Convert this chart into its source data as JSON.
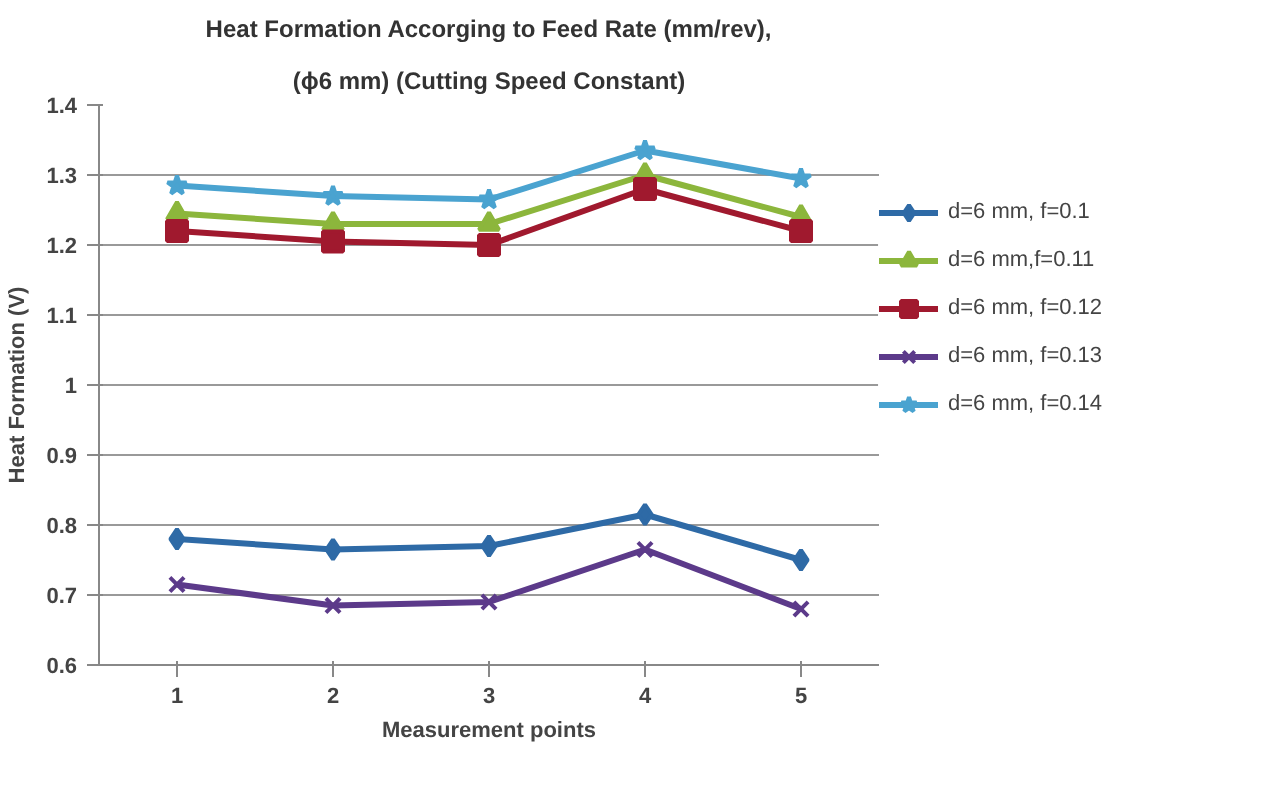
{
  "chart_data": {
    "type": "line",
    "title": "Heat Formation Accorging to Feed Rate (mm/rev),",
    "subtitle": "(ϕ6 mm) (Cutting Speed Constant)",
    "xlabel": "Measurement points",
    "ylabel": "Heat Formation (V)",
    "categories": [
      "1",
      "2",
      "3",
      "4",
      "5"
    ],
    "ylim": [
      0.6,
      1.4
    ],
    "yticks": [
      {
        "value": 0.6,
        "label": "0.6"
      },
      {
        "value": 0.7,
        "label": "0.7"
      },
      {
        "value": 0.8,
        "label": "0.8"
      },
      {
        "value": 0.9,
        "label": "0.9"
      },
      {
        "value": 1.0,
        "label": "1"
      },
      {
        "value": 1.1,
        "label": "1.1"
      },
      {
        "value": 1.2,
        "label": "1.2"
      },
      {
        "value": 1.3,
        "label": "1.3"
      },
      {
        "value": 1.4,
        "label": "1.4"
      }
    ],
    "grid": "y",
    "legend": "right",
    "line_style": "solid",
    "series": [
      {
        "name": "d=6 mm, f=0.1",
        "color": "#2e6aa6",
        "marker": "diamond",
        "values": [
          0.78,
          0.765,
          0.77,
          0.815,
          0.75
        ]
      },
      {
        "name": "d=6 mm,f=0.11",
        "color": "#8cb63c",
        "marker": "triangle",
        "values": [
          1.245,
          1.23,
          1.23,
          1.3,
          1.24
        ]
      },
      {
        "name": "d=6 mm, f=0.12",
        "color": "#a0192e",
        "marker": "square",
        "values": [
          1.22,
          1.205,
          1.2,
          1.28,
          1.22
        ]
      },
      {
        "name": "d=6 mm, f=0.13",
        "color": "#5c3a8a",
        "marker": "cross",
        "values": [
          0.715,
          0.685,
          0.69,
          0.765,
          0.68
        ]
      },
      {
        "name": "d=6 mm, f=0.14",
        "color": "#4aa3d0",
        "marker": "star",
        "values": [
          1.285,
          1.27,
          1.265,
          1.335,
          1.295
        ]
      }
    ]
  }
}
